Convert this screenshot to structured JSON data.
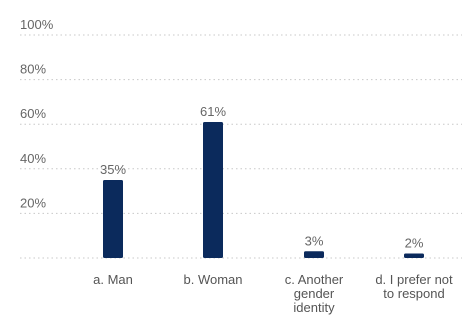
{
  "chart_data": {
    "type": "bar",
    "categories": [
      "a. Man",
      "b. Woman",
      "c. Another\ngender\nidentity",
      "d. I prefer not\nto respond"
    ],
    "values": [
      35,
      61,
      3,
      2
    ],
    "data_labels": [
      "35%",
      "61%",
      "3%",
      "2%"
    ],
    "ylim": [
      0,
      100
    ],
    "y_ticks": [
      20,
      40,
      60,
      80,
      100
    ],
    "y_tick_labels": [
      "20%",
      "40%",
      "60%",
      "80%",
      "100%"
    ],
    "grid": true,
    "bar_color": "#0b2a5c",
    "title": "",
    "xlabel": "",
    "ylabel": ""
  }
}
